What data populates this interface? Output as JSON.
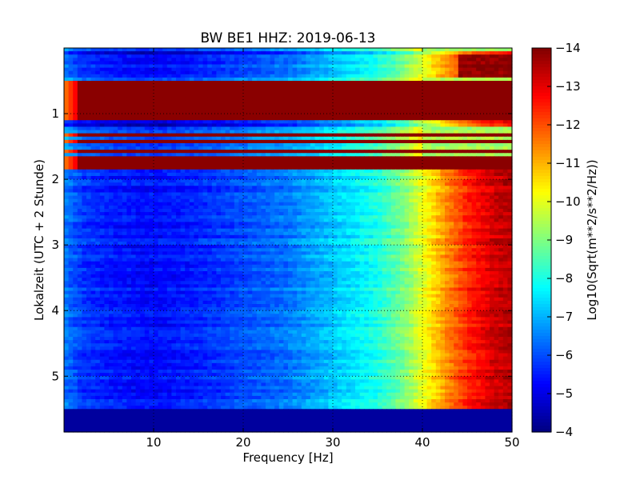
{
  "chart_data": {
    "type": "heatmap",
    "title": "BW BE1 HHZ: 2019-06-13",
    "xlabel": "Frequency [Hz]",
    "ylabel": "Lokalzeit (UTC + 2 Stunde)",
    "xlim": [
      0,
      50
    ],
    "ylim": [
      5.85,
      0.0
    ],
    "x_ticks": [
      10,
      20,
      30,
      40,
      50
    ],
    "y_ticks": [
      1,
      2,
      3,
      4,
      5
    ],
    "grid": true,
    "colormap": "jet",
    "colorbar": {
      "label": "Log10(Sqrt(m**2/s**2/Hz))",
      "range": [
        -14,
        -4
      ],
      "ticks": [
        -4,
        -5,
        -6,
        -7,
        -8,
        -9,
        -10,
        -11,
        -12,
        -13,
        -14
      ]
    },
    "spectrum_profile": {
      "frequency_hz": [
        0,
        2,
        5,
        10,
        15,
        20,
        25,
        30,
        35,
        38,
        40,
        42,
        45,
        48,
        50
      ],
      "level": [
        -6.5,
        -5.8,
        -5.5,
        -5.3,
        -5.6,
        -6.0,
        -6.4,
        -7.2,
        -8.0,
        -9.0,
        -10.0,
        -11.0,
        -12.4,
        -13.2,
        -13.5
      ]
    },
    "bands": [
      {
        "from": 0.0,
        "to": 0.07,
        "kind": "quiet"
      },
      {
        "from": 0.07,
        "to": 0.1,
        "kind": "high"
      },
      {
        "from": 0.1,
        "to": 0.45,
        "kind": "quiet_highfreq_dropout"
      },
      {
        "from": 0.45,
        "to": 0.5,
        "kind": "quiet"
      },
      {
        "from": 0.5,
        "to": 1.12,
        "kind": "dropout"
      },
      {
        "from": 1.12,
        "to": 1.18,
        "kind": "high"
      },
      {
        "from": 1.18,
        "to": 1.28,
        "kind": "quiet"
      },
      {
        "from": 1.28,
        "to": 1.33,
        "kind": "dropout"
      },
      {
        "from": 1.33,
        "to": 1.4,
        "kind": "quiet"
      },
      {
        "from": 1.4,
        "to": 1.45,
        "kind": "dropout"
      },
      {
        "from": 1.45,
        "to": 1.53,
        "kind": "quiet"
      },
      {
        "from": 1.53,
        "to": 1.58,
        "kind": "dropout"
      },
      {
        "from": 1.58,
        "to": 1.65,
        "kind": "quiet"
      },
      {
        "from": 1.65,
        "to": 1.85,
        "kind": "dropout"
      },
      {
        "from": 1.85,
        "to": 5.48,
        "kind": "normal"
      },
      {
        "from": 5.48,
        "to": 5.85,
        "kind": "saturated"
      }
    ]
  }
}
